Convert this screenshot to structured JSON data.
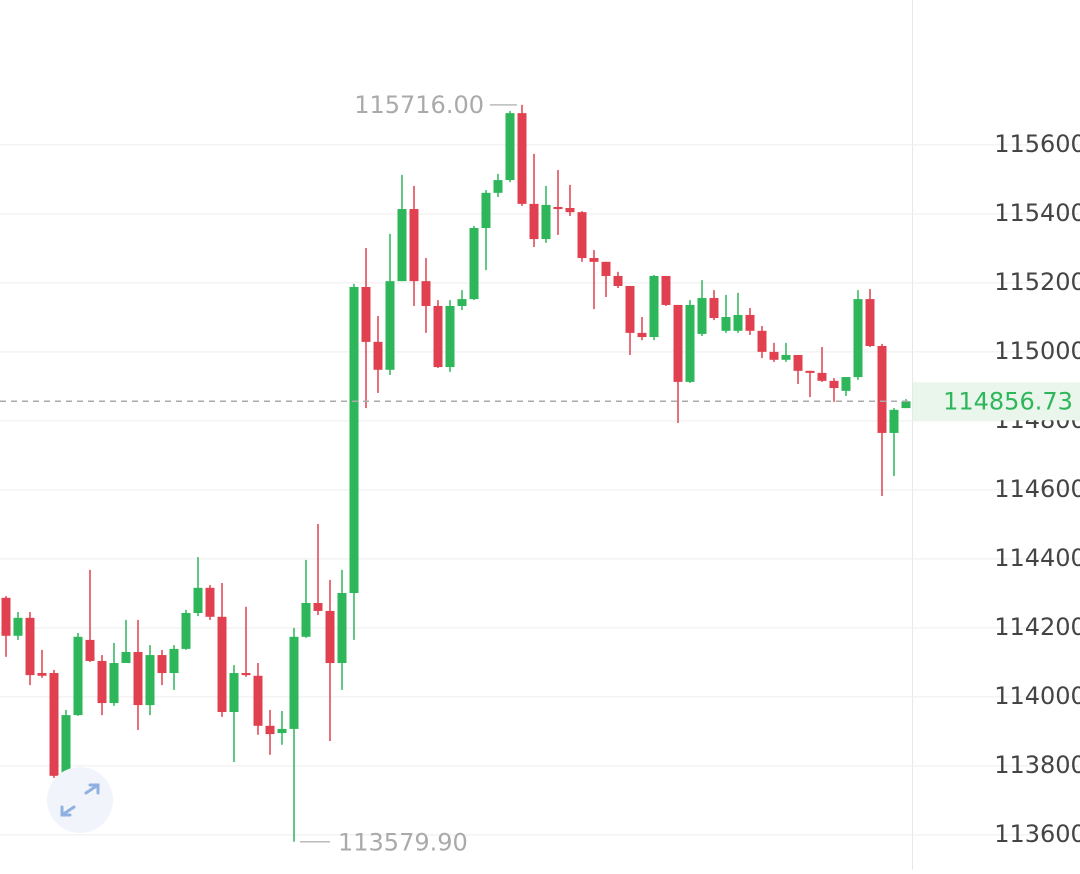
{
  "chart_data": {
    "type": "candlestick",
    "up_color": "#2eb65a",
    "down_color": "#e0404f",
    "grid": true,
    "ylim": [
      113498,
      116020
    ],
    "yticks": [
      113600,
      113800,
      114000,
      114200,
      114400,
      114600,
      114800,
      115000,
      115200,
      115400,
      115600
    ],
    "max_label": {
      "value": 115716,
      "label": "115716.00"
    },
    "min_label": {
      "value": 113579.9,
      "label": "113579.90"
    },
    "last_price": 114856.73,
    "open": [
      114287,
      114177,
      114229,
      114069,
      114069,
      113771,
      113947,
      114165,
      114104,
      113982,
      114098,
      114130,
      113976,
      114121,
      114069,
      114139,
      114243,
      114316,
      114232,
      113956,
      114069,
      114061,
      113916,
      113895,
      113907,
      114174,
      114272,
      114249,
      114098,
      114301,
      115188,
      115029,
      114948,
      115205,
      115414,
      115205,
      115133,
      114956,
      115133,
      115153,
      115359,
      115461,
      115498,
      115692,
      115429,
      115327,
      115420,
      115417,
      115405,
      115272,
      115261,
      115220,
      115191,
      115055,
      115043,
      115220,
      115136,
      114913,
      115052,
      115156,
      115061,
      115061,
      115107,
      115061,
      115000,
      114977,
      114991,
      114945,
      114939,
      114916,
      114887,
      114927,
      115153,
      115017,
      114765,
      114837
    ],
    "high": [
      114292,
      114246,
      114246,
      114136,
      114078,
      113962,
      114185,
      114368,
      114121,
      114156,
      114223,
      114223,
      114150,
      114136,
      114150,
      114252,
      114405,
      114324,
      114330,
      114092,
      114261,
      114098,
      113962,
      113959,
      114200,
      114397,
      114501,
      114339,
      114368,
      115197,
      115301,
      115104,
      115342,
      115513,
      115481,
      115272,
      115150,
      115150,
      115179,
      115365,
      115469,
      115516,
      115698,
      115716,
      115574,
      115481,
      115527,
      115484,
      115408,
      115295,
      115261,
      115232,
      115191,
      115101,
      115223,
      115220,
      115136,
      115150,
      115208,
      115179,
      115165,
      115171,
      115127,
      115075,
      115026,
      115026,
      114991,
      114945,
      115014,
      114924,
      114927,
      115179,
      115182,
      115023,
      114837,
      114863
    ],
    "low": [
      114116,
      114165,
      114034,
      114055,
      113765,
      113730,
      113945,
      114101,
      113947,
      113974,
      114107,
      113904,
      113947,
      114034,
      114020,
      114136,
      114234,
      114223,
      113942,
      113811,
      114058,
      113890,
      113832,
      113861,
      113579.9,
      114171,
      114237,
      113872,
      114020,
      114165,
      114837,
      114881,
      114933,
      115205,
      115133,
      115055,
      114953,
      114942,
      115121,
      115150,
      115237,
      115449,
      115492,
      115423,
      115304,
      115316,
      115339,
      115394,
      115261,
      115124,
      115159,
      115185,
      114991,
      115034,
      115034,
      115133,
      114794,
      114910,
      115046,
      115092,
      115055,
      115055,
      115049,
      114982,
      114971,
      114971,
      114907,
      114869,
      114913,
      114855,
      114872,
      114919,
      115014,
      114582,
      114640,
      114837
    ],
    "close": [
      114177,
      114229,
      114063,
      114061,
      113771,
      113947,
      114174,
      114104,
      113982,
      114098,
      114130,
      113976,
      114121,
      114069,
      114139,
      114243,
      114316,
      114232,
      113956,
      114069,
      114063,
      113916,
      113892,
      113907,
      114174,
      114272,
      114249,
      114098,
      114301,
      115188,
      115029,
      114948,
      115205,
      115414,
      115205,
      115133,
      114956,
      115133,
      115153,
      115359,
      115461,
      115498,
      115692,
      115429,
      115327,
      115426,
      115414,
      115405,
      115272,
      115261,
      115220,
      115191,
      115055,
      115043,
      115220,
      115136,
      114913,
      115136,
      115156,
      115098,
      115101,
      115107,
      115061,
      115000,
      114977,
      114991,
      114945,
      114939,
      114916,
      114895,
      114927,
      115153,
      115017,
      114765,
      114832,
      114856.73
    ]
  }
}
